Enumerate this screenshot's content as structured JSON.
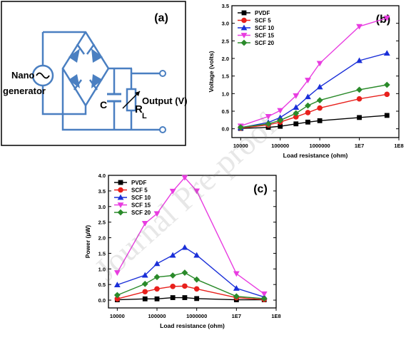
{
  "watermark": "Journal Pre-proof",
  "circuit": {
    "panel_label": "(a)",
    "source_label_1": "Nano",
    "source_label_2": "generator",
    "capacitor_label": "C",
    "resistor_label_main": "R",
    "resistor_label_sub": "L",
    "output_label": "Output (V)"
  },
  "chart_data": [
    {
      "type": "line",
      "panel_label": "(b)",
      "xlabel": "Load resistance (ohm)",
      "ylabel": "Voltage (volts)",
      "xscale": "log",
      "xlim": [
        6000,
        100000000
      ],
      "ylim": [
        -0.25,
        3.5
      ],
      "xticks": [
        10000,
        100000,
        1000000,
        10000000,
        100000000
      ],
      "xtick_labels": [
        "10000",
        "100000",
        "1000000",
        "1E7",
        "1E8"
      ],
      "yticks": [
        0.0,
        0.5,
        1.0,
        1.5,
        2.0,
        2.5,
        3.0,
        3.5
      ],
      "ytick_labels": [
        "0.0",
        "0.5",
        "1.0",
        "1.5",
        "2.0",
        "2.5",
        "3.0",
        "3.5"
      ],
      "legend_position": "top-left",
      "x": [
        10000,
        50000,
        100000,
        250000,
        500000,
        1000000,
        10000000,
        50000000
      ],
      "series": [
        {
          "name": "PVDF",
          "color": "#000000",
          "marker": "square",
          "values": [
            0.01,
            0.04,
            0.07,
            0.14,
            0.19,
            0.23,
            0.32,
            0.38
          ]
        },
        {
          "name": "SCF 5",
          "color": "#e8201c",
          "marker": "circle",
          "values": [
            0.02,
            0.11,
            0.19,
            0.34,
            0.46,
            0.59,
            0.85,
            0.98
          ]
        },
        {
          "name": "SCF 10",
          "color": "#1a2fd8",
          "marker": "triangle",
          "values": [
            0.03,
            0.18,
            0.32,
            0.61,
            0.91,
            1.19,
            1.94,
            2.15
          ]
        },
        {
          "name": "SCF 15",
          "color": "#e83ce0",
          "marker": "tri-down",
          "values": [
            0.08,
            0.35,
            0.52,
            0.94,
            1.38,
            1.86,
            2.91,
            3.15
          ]
        },
        {
          "name": "SCF 20",
          "color": "#2a8a2a",
          "marker": "diamond",
          "values": [
            0.04,
            0.14,
            0.24,
            0.44,
            0.66,
            0.81,
            1.11,
            1.25
          ]
        }
      ]
    },
    {
      "type": "line",
      "panel_label": "(c)",
      "xlabel": "Load resistance (ohm)",
      "ylabel": "Power (µW)",
      "xscale": "log",
      "xlim": [
        6000,
        100000000
      ],
      "ylim": [
        -0.25,
        4.0
      ],
      "xticks": [
        10000,
        100000,
        1000000,
        10000000,
        100000000
      ],
      "xtick_labels": [
        "10000",
        "100000",
        "1000000",
        "1E7",
        "1E8"
      ],
      "yticks": [
        0.0,
        0.5,
        1.0,
        1.5,
        2.0,
        2.5,
        3.0,
        3.5,
        4.0
      ],
      "ytick_labels": [
        "0.0",
        "0.5",
        "1.0",
        "1.5",
        "2.0",
        "2.5",
        "3.0",
        "3.5",
        "4.0"
      ],
      "legend_position": "top-left",
      "x": [
        10000,
        50000,
        100000,
        250000,
        500000,
        1000000,
        10000000,
        50000000
      ],
      "series": [
        {
          "name": "PVDF",
          "color": "#000000",
          "marker": "square",
          "values": [
            0.01,
            0.04,
            0.04,
            0.08,
            0.08,
            0.05,
            0.01,
            0.01
          ]
        },
        {
          "name": "SCF 5",
          "color": "#e8201c",
          "marker": "circle",
          "values": [
            0.04,
            0.27,
            0.36,
            0.44,
            0.45,
            0.36,
            0.08,
            0.02
          ]
        },
        {
          "name": "SCF 10",
          "color": "#1a2fd8",
          "marker": "triangle",
          "values": [
            0.49,
            0.8,
            1.17,
            1.44,
            1.69,
            1.44,
            0.38,
            0.1
          ]
        },
        {
          "name": "SCF 15",
          "color": "#e83ce0",
          "marker": "tri-down",
          "values": [
            0.88,
            2.46,
            2.77,
            3.49,
            3.93,
            3.5,
            0.85,
            0.2
          ]
        },
        {
          "name": "SCF 20",
          "color": "#2a8a2a",
          "marker": "diamond",
          "values": [
            0.16,
            0.52,
            0.74,
            0.79,
            0.88,
            0.66,
            0.12,
            0.05
          ]
        }
      ]
    }
  ]
}
